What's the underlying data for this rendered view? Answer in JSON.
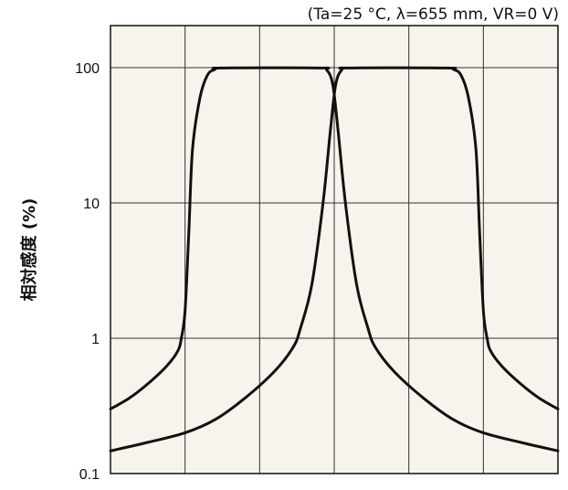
{
  "chart_data": {
    "type": "line",
    "title": "",
    "condition": "(Ta=25 °C, λ=655 mm, VR=0 V)",
    "ylabel": "相対感度 (%)",
    "xlabel": "",
    "yscale": "log",
    "ylim": [
      0.1,
      200
    ],
    "xlim": [
      0,
      6
    ],
    "yticks": [
      {
        "value": 100,
        "label": "100"
      },
      {
        "value": 10,
        "label": "10"
      },
      {
        "value": 1,
        "label": "1"
      },
      {
        "value": 0.1,
        "label": "0.1"
      }
    ],
    "x_gridlines": [
      1,
      2,
      3,
      4,
      5
    ],
    "grid": true,
    "background": "#f6f4ec",
    "series": [
      {
        "color": "#111111",
        "points": [
          [
            0.0,
            0.3
          ],
          [
            0.25,
            0.36
          ],
          [
            0.5,
            0.46
          ],
          [
            0.75,
            0.62
          ],
          [
            0.9,
            0.8
          ],
          [
            0.95,
            1.0
          ],
          [
            1.0,
            1.6
          ],
          [
            1.05,
            6.0
          ],
          [
            1.1,
            25
          ],
          [
            1.2,
            60
          ],
          [
            1.3,
            88
          ],
          [
            1.4,
            97
          ],
          [
            1.5,
            99.5
          ],
          [
            2.8,
            99.5
          ],
          [
            2.9,
            96
          ],
          [
            2.98,
            75
          ],
          [
            3.05,
            35
          ],
          [
            3.15,
            10
          ],
          [
            3.3,
            2.5
          ],
          [
            3.45,
            1.2
          ],
          [
            3.55,
            0.86
          ],
          [
            3.8,
            0.57
          ],
          [
            4.2,
            0.36
          ],
          [
            4.6,
            0.25
          ],
          [
            5.0,
            0.2
          ],
          [
            5.5,
            0.17
          ],
          [
            6.0,
            0.147
          ]
        ]
      },
      {
        "color": "#111111",
        "points": [
          [
            0.0,
            0.147
          ],
          [
            0.5,
            0.17
          ],
          [
            1.0,
            0.2
          ],
          [
            1.4,
            0.25
          ],
          [
            1.8,
            0.36
          ],
          [
            2.2,
            0.57
          ],
          [
            2.45,
            0.86
          ],
          [
            2.55,
            1.2
          ],
          [
            2.7,
            2.5
          ],
          [
            2.85,
            10
          ],
          [
            2.95,
            35
          ],
          [
            3.02,
            75
          ],
          [
            3.1,
            96
          ],
          [
            3.2,
            99.5
          ],
          [
            4.5,
            99.5
          ],
          [
            4.6,
            97
          ],
          [
            4.7,
            88
          ],
          [
            4.8,
            60
          ],
          [
            4.9,
            25
          ],
          [
            4.95,
            6.0
          ],
          [
            5.0,
            1.6
          ],
          [
            5.05,
            1.0
          ],
          [
            5.1,
            0.8
          ],
          [
            5.25,
            0.62
          ],
          [
            5.5,
            0.46
          ],
          [
            5.75,
            0.36
          ],
          [
            6.0,
            0.3
          ]
        ]
      }
    ]
  }
}
